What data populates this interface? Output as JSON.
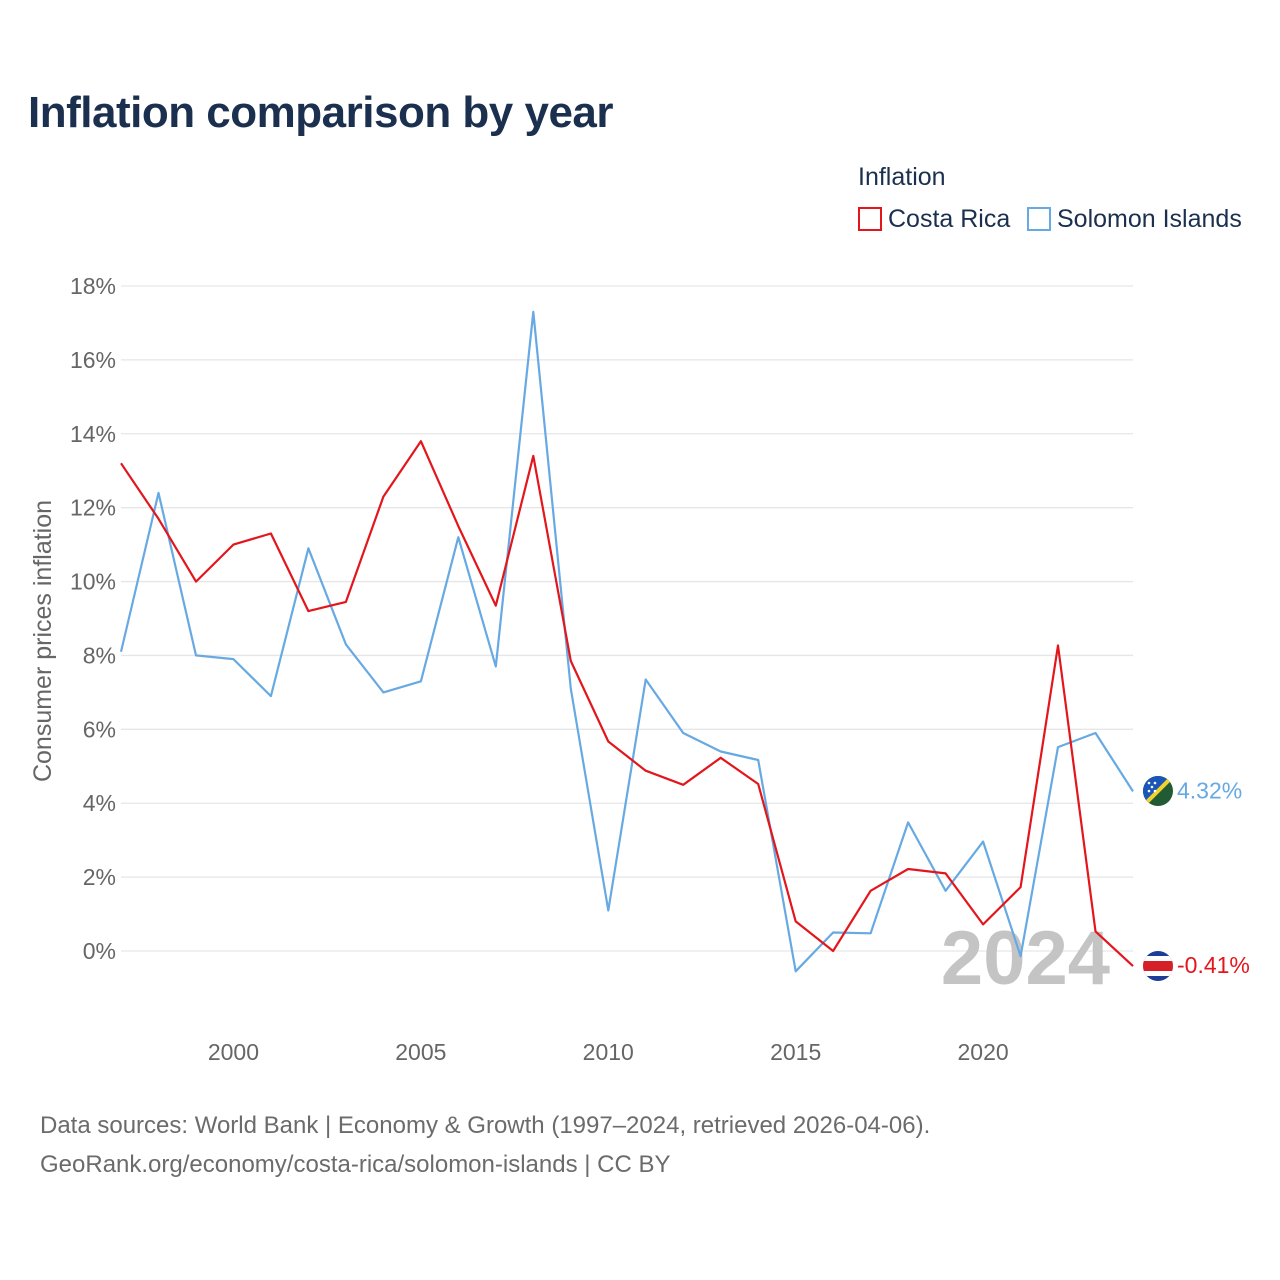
{
  "title": "Inflation comparison by year",
  "legend": {
    "title": "Inflation",
    "items": [
      {
        "label": "Costa Rica",
        "color": "#e3161c"
      },
      {
        "label": "Solomon Islands",
        "color": "#67a9e3"
      }
    ]
  },
  "year_watermark": "2024",
  "source": {
    "line1": "Data sources: World Bank | Economy & Growth (1997–2024, retrieved 2026-04-06).",
    "line2": "GeoRank.org/economy/costa-rica/solomon-islands | CC BY"
  },
  "chart_data": {
    "type": "line",
    "title": "Inflation comparison by year",
    "xlabel": "",
    "ylabel": "Consumer prices inflation",
    "x": [
      1997,
      1998,
      1999,
      2000,
      2001,
      2002,
      2003,
      2004,
      2005,
      2006,
      2007,
      2008,
      2009,
      2010,
      2011,
      2012,
      2013,
      2014,
      2015,
      2016,
      2017,
      2018,
      2019,
      2020,
      2021,
      2022,
      2023,
      2024
    ],
    "xlim": [
      1997,
      2024
    ],
    "ylim": [
      -2,
      18
    ],
    "y_ticks": [
      0,
      2,
      4,
      6,
      8,
      10,
      12,
      14,
      16,
      18
    ],
    "y_tick_labels": [
      "0%",
      "2%",
      "4%",
      "6%",
      "8%",
      "10%",
      "12%",
      "14%",
      "16%",
      "18%"
    ],
    "x_ticks": [
      2000,
      2005,
      2010,
      2015,
      2020
    ],
    "x_tick_labels": [
      "2000",
      "2005",
      "2010",
      "2015",
      "2020"
    ],
    "grid": true,
    "legend_position": "top-right",
    "series": [
      {
        "name": "Costa Rica",
        "color": "#e3161c",
        "end_label": "-0.41%",
        "values": [
          13.2,
          11.7,
          10.0,
          11.0,
          11.3,
          9.2,
          9.45,
          12.3,
          13.8,
          11.5,
          9.35,
          13.4,
          7.85,
          5.67,
          4.88,
          4.5,
          5.23,
          4.52,
          0.8,
          0.0,
          1.63,
          2.22,
          2.1,
          0.72,
          1.73,
          8.27,
          0.53,
          -0.41
        ]
      },
      {
        "name": "Solomon Islands",
        "color": "#67a9e3",
        "end_label": "4.32%",
        "values": [
          8.1,
          12.4,
          8.0,
          7.9,
          6.9,
          10.9,
          8.3,
          7.0,
          7.3,
          11.2,
          7.7,
          17.3,
          7.1,
          1.1,
          7.35,
          5.9,
          5.4,
          5.17,
          -0.55,
          0.5,
          0.48,
          3.48,
          1.63,
          2.96,
          -0.14,
          5.52,
          5.9,
          4.32
        ]
      }
    ]
  }
}
